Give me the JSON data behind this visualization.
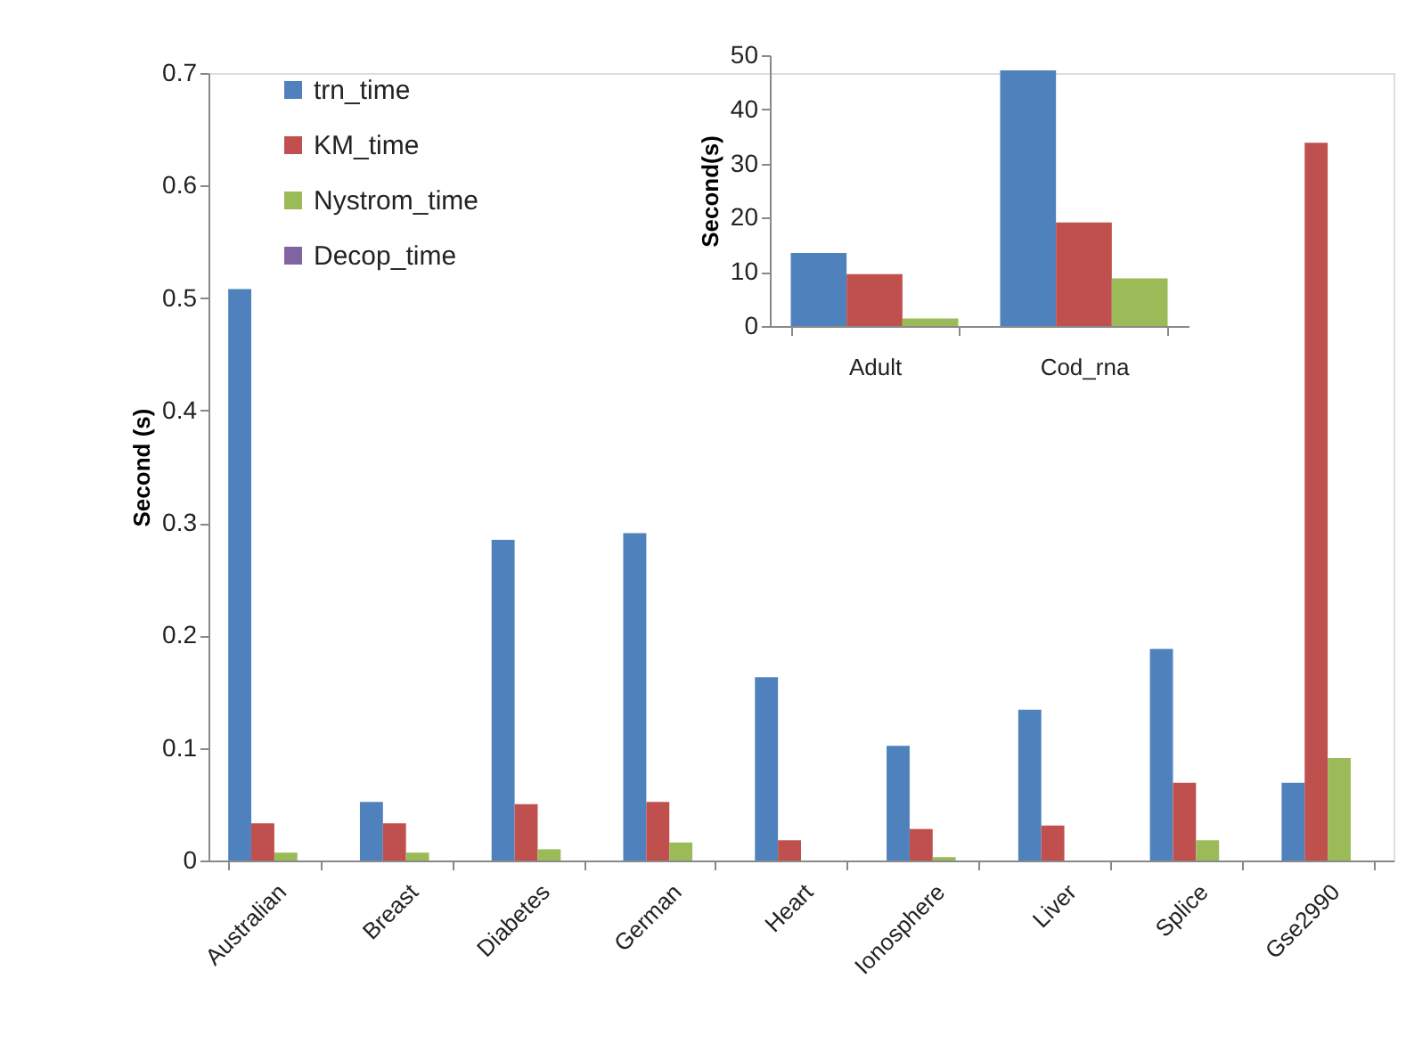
{
  "chart_data": [
    {
      "type": "bar",
      "ylabel": "Second (s)",
      "categories": [
        "Australian",
        "Breast",
        "Diabetes",
        "German",
        "Heart",
        "Ionosphere",
        "Liver",
        "Splice",
        "Gse2990"
      ],
      "series": [
        {
          "name": "trn_time",
          "color": "#4f81bd",
          "values": [
            0.508,
            0.052,
            0.285,
            0.291,
            0.163,
            0.102,
            0.134,
            0.188,
            0.069
          ]
        },
        {
          "name": "KM_time",
          "color": "#c0504d",
          "values": [
            0.033,
            0.033,
            0.05,
            0.052,
            0.018,
            0.028,
            0.031,
            0.069,
            0.638
          ]
        },
        {
          "name": "Nystrom_time",
          "color": "#9bbb59",
          "values": [
            0.007,
            0.007,
            0.01,
            0.016,
            null,
            0.003,
            null,
            0.018,
            0.091
          ]
        },
        {
          "name": "Decop_time",
          "color": "#8064a2",
          "values": [
            null,
            null,
            null,
            null,
            null,
            null,
            null,
            null,
            null
          ]
        }
      ],
      "ylim": [
        0,
        0.7
      ],
      "yticks": [
        {
          "value": 0,
          "label": "0"
        },
        0.1,
        0.2,
        0.3,
        0.4,
        0.5,
        0.6,
        0.7
      ],
      "grid": false,
      "legend": "top left"
    },
    {
      "type": "bar",
      "ylabel": "Second(s)",
      "categories": [
        "Adult",
        "Cod_rna"
      ],
      "series": [
        {
          "color": "#4f81bd",
          "values": [
            13.5,
            47.2
          ]
        },
        {
          "color": "#c0504d",
          "values": [
            9.6,
            19.1
          ]
        },
        {
          "color": "#9bbb59",
          "values": [
            1.4,
            8.8
          ]
        }
      ],
      "ylim": [
        0,
        50
      ],
      "yticks": [
        0,
        10,
        20,
        30,
        40,
        50
      ],
      "grid": false,
      "legend": false
    }
  ]
}
